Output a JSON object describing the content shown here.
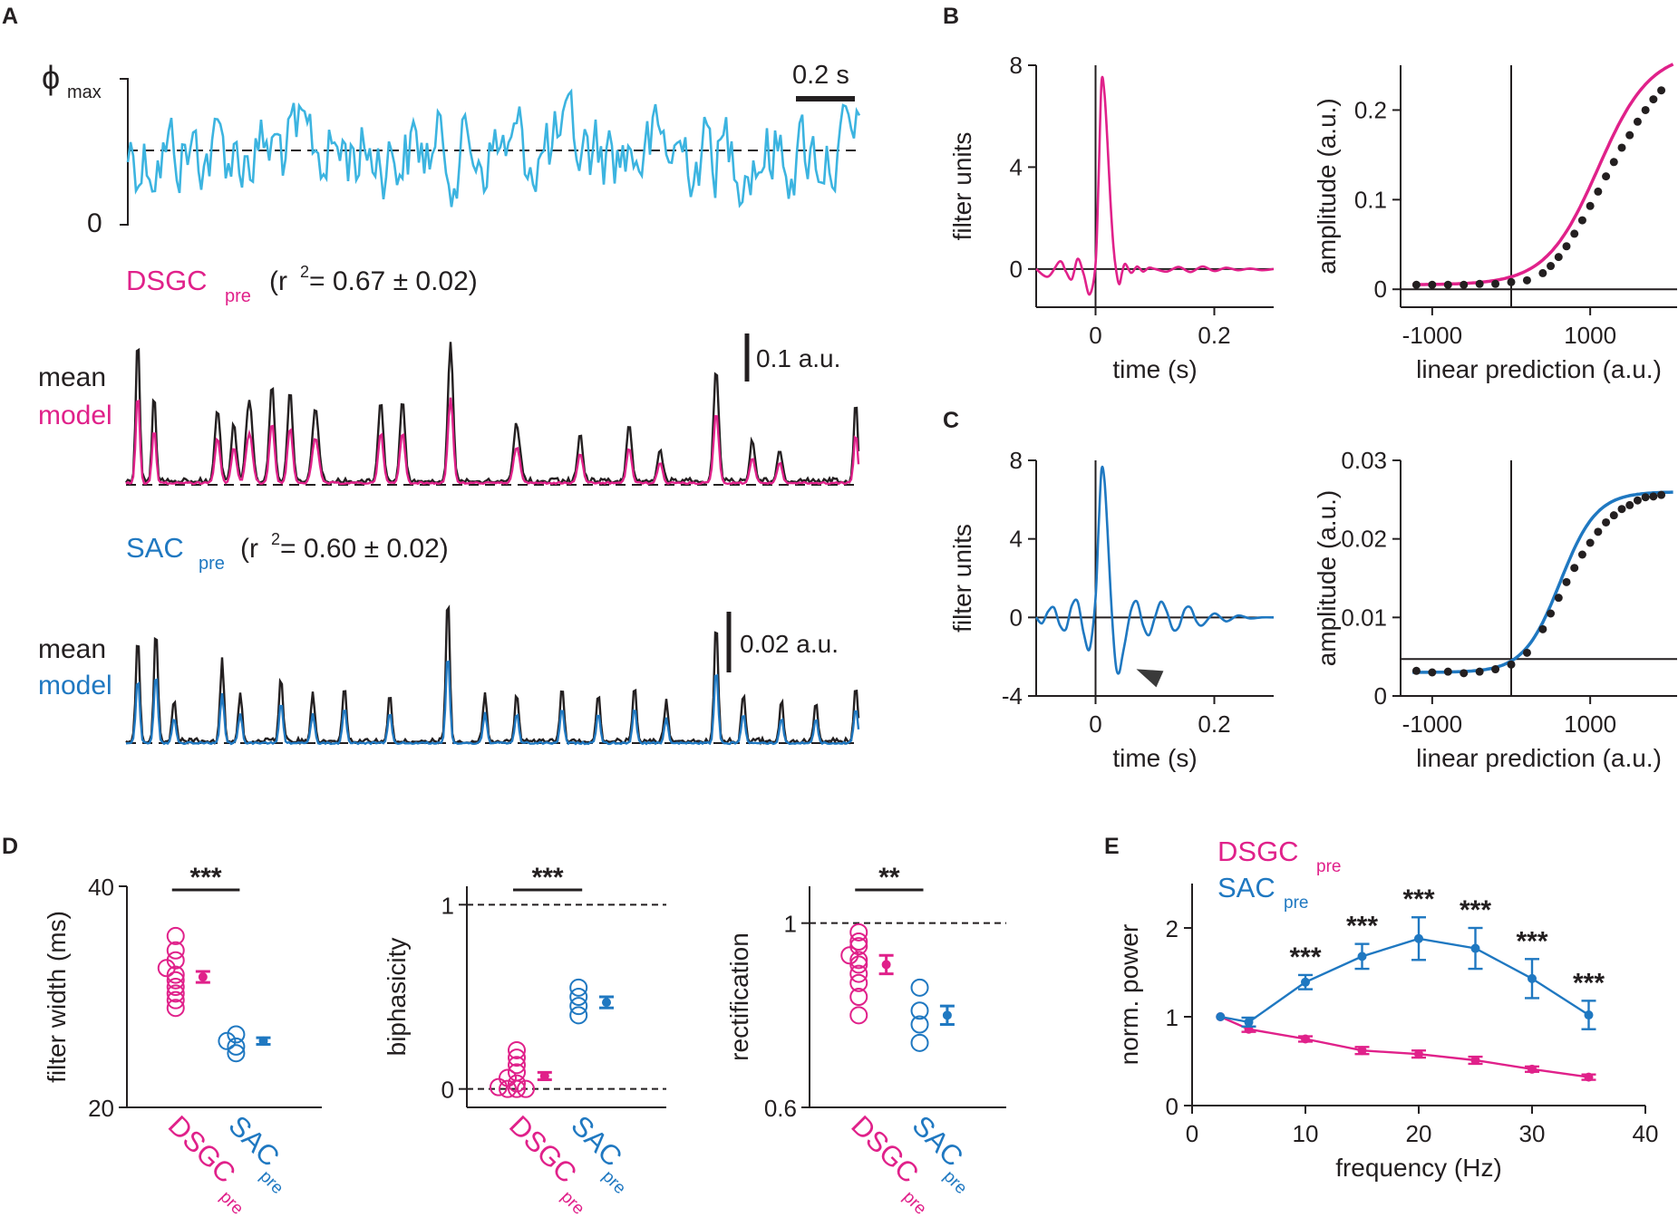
{
  "figure": {
    "panel_labels": [
      "A",
      "B",
      "C",
      "D",
      "E"
    ],
    "colors": {
      "dsgc": "#e0218a",
      "sac": "#1f78c1",
      "stim": "#3cb4e0",
      "data": "#231f20"
    }
  },
  "panel_a": {
    "stim_label_symbol": "ϕ",
    "stim_label_sub": "max",
    "stim_zero": "0",
    "time_scalebar": "0.2 s",
    "dsgc": {
      "name": "DSGC",
      "sub": "pre",
      "r2_open": "(r",
      "r2_sup": "2",
      "r2_value": " = 0.67 ± 0.02)",
      "legend_mean": "mean",
      "legend_model": "model",
      "scalebar": "0.1 a.u."
    },
    "sac": {
      "name": "SAC",
      "sub": "pre",
      "r2_open": "(r",
      "r2_sup": "2",
      "r2_value": " = 0.60 ± 0.02)",
      "legend_mean": "mean",
      "legend_model": "model",
      "scalebar": "0.02 a.u."
    }
  },
  "chart_data": [
    {
      "id": "B-filter",
      "type": "line",
      "xlabel": "time (s)",
      "ylabel": "filter units",
      "xlim": [
        -0.1,
        0.3
      ],
      "ylim": [
        -1.5,
        8
      ],
      "xticks": [
        0,
        0.2
      ],
      "xtick_labels": [
        "0",
        "0.2"
      ],
      "yticks": [
        0,
        4,
        8
      ],
      "ytick_labels": [
        "0",
        "4",
        "8"
      ],
      "series": [
        {
          "name": "DSGCpre filter",
          "color": "#e0218a",
          "x": [
            -0.1,
            -0.08,
            -0.06,
            -0.05,
            -0.04,
            -0.03,
            -0.02,
            -0.01,
            0.0,
            0.005,
            0.01,
            0.015,
            0.02,
            0.025,
            0.03,
            0.035,
            0.04,
            0.045,
            0.05,
            0.06,
            0.07,
            0.08,
            0.09,
            0.1,
            0.12,
            0.14,
            0.16,
            0.18,
            0.2,
            0.22,
            0.24,
            0.26,
            0.28,
            0.3
          ],
          "values": [
            0,
            -0.3,
            0.3,
            -0.1,
            -0.4,
            0.4,
            -0.2,
            -1.0,
            0.2,
            3.5,
            7.3,
            6.9,
            5.0,
            2.7,
            0.9,
            -0.1,
            -0.6,
            -0.1,
            0.2,
            -0.15,
            0.1,
            -0.1,
            0.05,
            0.0,
            -0.1,
            0.08,
            -0.12,
            0.1,
            -0.08,
            0.05,
            -0.05,
            0.02,
            -0.05,
            0.0
          ]
        }
      ]
    },
    {
      "id": "B-nonlinearity",
      "type": "scatter",
      "xlabel": "linear prediction (a.u.)",
      "ylabel": "amplitude (a.u.)",
      "xlim": [
        -1400,
        2100
      ],
      "ylim": [
        -0.02,
        0.25
      ],
      "xticks": [
        -1000,
        1000
      ],
      "xtick_labels": [
        "-1000",
        "1000"
      ],
      "yticks": [
        0,
        0.1,
        0.2
      ],
      "ytick_labels": [
        "0",
        "0.1",
        "0.2"
      ],
      "series": [
        {
          "name": "DSGCpre data",
          "color": "#231f20",
          "x": [
            -1200,
            -1000,
            -800,
            -600,
            -400,
            -200,
            0,
            200,
            400,
            500,
            600,
            700,
            800,
            900,
            1000,
            1100,
            1200,
            1300,
            1400,
            1500,
            1600,
            1700,
            1800,
            1900
          ],
          "values": [
            0.005,
            0.005,
            0.005,
            0.005,
            0.006,
            0.006,
            0.008,
            0.01,
            0.018,
            0.026,
            0.036,
            0.048,
            0.062,
            0.077,
            0.093,
            0.109,
            0.126,
            0.142,
            0.158,
            0.172,
            0.187,
            0.2,
            0.212,
            0.222
          ]
        }
      ],
      "fit": {
        "color": "#e0218a",
        "center": 1100,
        "scale": 330,
        "baseline": 0.005,
        "amplitude": 0.26
      }
    },
    {
      "id": "C-filter",
      "type": "line",
      "xlabel": "time (s)",
      "ylabel": "filter units",
      "xlim": [
        -0.1,
        0.3
      ],
      "ylim": [
        -4,
        8
      ],
      "xticks": [
        0,
        0.2
      ],
      "xtick_labels": [
        "0",
        "0.2"
      ],
      "yticks": [
        -4,
        0,
        4,
        8
      ],
      "ytick_labels": [
        "-4",
        "0",
        "4",
        "8"
      ],
      "series": [
        {
          "name": "SACpre filter",
          "color": "#1f78c1",
          "x": [
            -0.1,
            -0.09,
            -0.08,
            -0.07,
            -0.06,
            -0.05,
            -0.04,
            -0.03,
            -0.02,
            -0.01,
            0.0,
            0.005,
            0.01,
            0.015,
            0.02,
            0.025,
            0.03,
            0.035,
            0.04,
            0.045,
            0.05,
            0.06,
            0.07,
            0.08,
            0.09,
            0.1,
            0.11,
            0.12,
            0.13,
            0.14,
            0.15,
            0.16,
            0.17,
            0.18,
            0.2,
            0.22,
            0.24,
            0.26,
            0.28,
            0.3
          ],
          "values": [
            0,
            -0.3,
            0.3,
            0.5,
            -0.4,
            -0.6,
            0.6,
            0.8,
            -0.8,
            -1.6,
            1.0,
            4.5,
            7.5,
            7.0,
            4.5,
            1.5,
            -1.0,
            -2.6,
            -2.8,
            -2.0,
            -1.2,
            0.4,
            0.8,
            -0.4,
            -0.9,
            0.0,
            0.8,
            0.3,
            -0.6,
            -0.5,
            0.4,
            0.5,
            -0.2,
            -0.4,
            0.2,
            -0.2,
            0.1,
            -0.05,
            0.0,
            0.0
          ]
        }
      ],
      "arrow_at": [
        0.09,
        -3.0
      ]
    },
    {
      "id": "C-nonlinearity",
      "type": "scatter",
      "xlabel": "linear prediction (a.u.)",
      "ylabel": "amplitude (a.u.)",
      "xlim": [
        -1400,
        2100
      ],
      "ylim": [
        0,
        0.03
      ],
      "xticks": [
        -1000,
        1000
      ],
      "xtick_labels": [
        "-1000",
        "1000"
      ],
      "yticks": [
        0,
        0.01,
        0.02,
        0.03
      ],
      "ytick_labels": [
        "0",
        "0.01",
        "0.02",
        "0.03"
      ],
      "baseline_line": 0.0047,
      "series": [
        {
          "name": "SACpre data",
          "color": "#231f20",
          "x": [
            -1200,
            -1000,
            -800,
            -600,
            -400,
            -200,
            0,
            200,
            400,
            500,
            600,
            700,
            800,
            900,
            1000,
            1100,
            1200,
            1300,
            1400,
            1500,
            1600,
            1700,
            1800,
            1900
          ],
          "values": [
            0.0032,
            0.003,
            0.0031,
            0.0029,
            0.0031,
            0.0034,
            0.004,
            0.0055,
            0.0085,
            0.0105,
            0.0125,
            0.0145,
            0.0163,
            0.018,
            0.0195,
            0.0209,
            0.0221,
            0.023,
            0.0238,
            0.0243,
            0.0249,
            0.0253,
            0.0254,
            0.0256
          ]
        }
      ],
      "fit": {
        "color": "#1f78c1",
        "center": 620,
        "scale": 230,
        "baseline": 0.003,
        "amplitude": 0.023
      }
    },
    {
      "id": "D-filter-width",
      "type": "scatter",
      "ylabel": "filter width (ms)",
      "categories": [
        "DSGC",
        "SAC"
      ],
      "category_sub": [
        "pre",
        "pre"
      ],
      "ylim": [
        20,
        40
      ],
      "yticks": [
        20,
        40
      ],
      "ytick_labels": [
        "20",
        "40"
      ],
      "significance": "***",
      "series": [
        {
          "name": "DSGCpre",
          "color": "#e0218a",
          "values": [
            29.0,
            29.7,
            30.3,
            30.9,
            31.5,
            32.0,
            32.6,
            33.3,
            34.2,
            35.5
          ],
          "mean": 31.8,
          "sem": 0.5
        },
        {
          "name": "SACpre",
          "color": "#1f78c1",
          "values": [
            24.9,
            25.5,
            26.0,
            26.6
          ],
          "mean": 26.0,
          "sem": 0.3
        }
      ]
    },
    {
      "id": "D-biphasicity",
      "type": "scatter",
      "ylabel": "biphasicity",
      "categories": [
        "DSGC",
        "SAC"
      ],
      "category_sub": [
        "pre",
        "pre"
      ],
      "ylim": [
        -0.1,
        1.1
      ],
      "yticks": [
        0,
        1
      ],
      "ytick_labels": [
        "0",
        "1"
      ],
      "ref_lines": [
        0,
        1
      ],
      "significance": "***",
      "series": [
        {
          "name": "DSGCpre",
          "color": "#e0218a",
          "values": [
            0.0,
            0.0,
            0.0,
            0.01,
            0.03,
            0.06,
            0.09,
            0.13,
            0.17,
            0.21
          ],
          "mean": 0.07,
          "sem": 0.02
        },
        {
          "name": "SACpre",
          "color": "#1f78c1",
          "values": [
            0.4,
            0.45,
            0.5,
            0.55
          ],
          "mean": 0.47,
          "sem": 0.03
        }
      ]
    },
    {
      "id": "D-rectification",
      "type": "scatter",
      "ylabel": "rectification",
      "categories": [
        "DSGC",
        "SAC"
      ],
      "category_sub": [
        "pre",
        "pre"
      ],
      "ylim": [
        0.6,
        1.08
      ],
      "yticks": [
        0.6,
        1
      ],
      "ytick_labels": [
        "0.6",
        "1"
      ],
      "ref_lines": [
        1
      ],
      "significance": "**",
      "series": [
        {
          "name": "DSGCpre",
          "color": "#e0218a",
          "values": [
            0.8,
            0.84,
            0.87,
            0.89,
            0.91,
            0.92,
            0.93,
            0.95,
            0.96,
            0.98
          ],
          "mean": 0.91,
          "sem": 0.02
        },
        {
          "name": "SACpre",
          "color": "#1f78c1",
          "values": [
            0.74,
            0.78,
            0.81,
            0.86
          ],
          "mean": 0.8,
          "sem": 0.02
        }
      ]
    },
    {
      "id": "E-power",
      "type": "line",
      "xlabel": "frequency (Hz)",
      "ylabel": "norm. power",
      "xlim": [
        0,
        40
      ],
      "ylim": [
        0,
        2.5
      ],
      "xticks": [
        0,
        10,
        20,
        30,
        40
      ],
      "xtick_labels": [
        "0",
        "10",
        "20",
        "30",
        "40"
      ],
      "yticks": [
        0,
        1,
        2
      ],
      "ytick_labels": [
        "0",
        "1",
        "2"
      ],
      "legend": [
        {
          "name": "DSGC",
          "sub": "pre",
          "color": "#e0218a"
        },
        {
          "name": "SAC",
          "sub": "pre",
          "color": "#1f78c1"
        }
      ],
      "legend_position": "top-left",
      "series": [
        {
          "name": "DSGCpre",
          "color": "#e0218a",
          "x": [
            2.5,
            5,
            10,
            15,
            20,
            25,
            30,
            35
          ],
          "values": [
            1.0,
            0.86,
            0.75,
            0.62,
            0.58,
            0.51,
            0.41,
            0.32
          ],
          "err": [
            0,
            0.03,
            0.03,
            0.04,
            0.04,
            0.04,
            0.03,
            0.03
          ]
        },
        {
          "name": "SACpre",
          "color": "#1f78c1",
          "x": [
            2.5,
            5,
            10,
            15,
            20,
            25,
            30,
            35
          ],
          "values": [
            1.0,
            0.94,
            1.39,
            1.68,
            1.88,
            1.77,
            1.43,
            1.02
          ],
          "err": [
            0,
            0.05,
            0.08,
            0.14,
            0.24,
            0.23,
            0.22,
            0.16
          ]
        }
      ],
      "significance_labels": [
        {
          "x": 10,
          "label": "***"
        },
        {
          "x": 15,
          "label": "***"
        },
        {
          "x": 20,
          "label": "***"
        },
        {
          "x": 25,
          "label": "***"
        },
        {
          "x": 30,
          "label": "***"
        },
        {
          "x": 35,
          "label": "***"
        }
      ]
    }
  ]
}
